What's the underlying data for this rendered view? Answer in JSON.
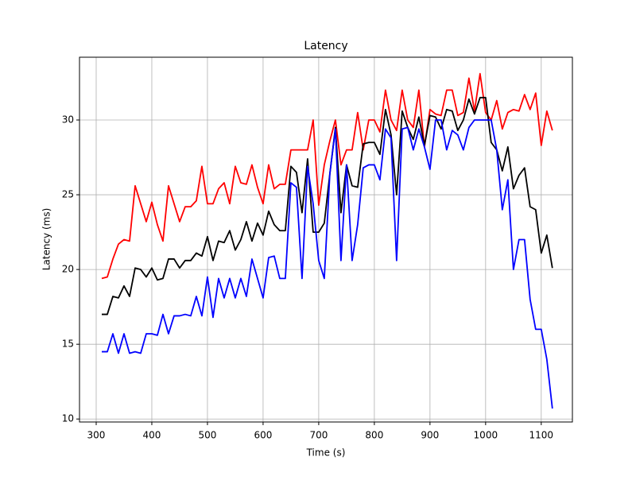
{
  "chart_data": {
    "type": "line",
    "title": "Latency",
    "x_label": "Time (s)",
    "y_label": "Latency (ms)",
    "x": [
      310,
      320,
      330,
      340,
      350,
      360,
      370,
      380,
      390,
      400,
      410,
      420,
      430,
      440,
      450,
      460,
      470,
      480,
      490,
      500,
      510,
      520,
      530,
      540,
      550,
      560,
      570,
      580,
      590,
      600,
      610,
      620,
      630,
      640,
      650,
      660,
      670,
      680,
      690,
      700,
      710,
      720,
      730,
      740,
      750,
      760,
      770,
      780,
      790,
      800,
      810,
      820,
      830,
      840,
      850,
      860,
      870,
      880,
      890,
      900,
      910,
      920,
      930,
      940,
      950,
      960,
      970,
      980,
      990,
      1000,
      1010,
      1020,
      1030,
      1040,
      1050,
      1060,
      1070,
      1080,
      1090,
      1100,
      1110,
      1120
    ],
    "series": [
      {
        "color": "#ff0000",
        "values": [
          19.4,
          19.5,
          20.7,
          21.7,
          22.0,
          21.9,
          25.6,
          24.4,
          23.2,
          24.5,
          23.0,
          21.9,
          25.6,
          24.4,
          23.2,
          24.2,
          24.2,
          24.6,
          26.9,
          24.4,
          24.4,
          25.4,
          25.8,
          24.4,
          26.9,
          25.8,
          25.7,
          27.0,
          25.5,
          24.4,
          27.0,
          25.4,
          25.7,
          25.7,
          28.0,
          28.0,
          28.0,
          28.0,
          30.0,
          24.3,
          27.0,
          28.6,
          30.0,
          27.0,
          28.0,
          28.0,
          30.5,
          28.0,
          30.0,
          30.0,
          29.2,
          32.0,
          30.0,
          29.3,
          32.0,
          30.0,
          29.5,
          32.0,
          28.2,
          30.7,
          30.4,
          30.3,
          32.0,
          32.0,
          30.3,
          30.5,
          32.8,
          30.6,
          33.1,
          30.5,
          30.0,
          31.3,
          29.4,
          30.5,
          30.7,
          30.6,
          31.7,
          30.7,
          31.8,
          28.3,
          30.6,
          29.3
        ]
      },
      {
        "color": "#000000",
        "values": [
          17.0,
          17.0,
          18.2,
          18.1,
          18.9,
          18.2,
          20.1,
          20.0,
          19.5,
          20.1,
          19.3,
          19.4,
          20.7,
          20.7,
          20.1,
          20.6,
          20.6,
          21.1,
          20.9,
          22.2,
          20.6,
          21.9,
          21.8,
          22.6,
          21.3,
          22.0,
          23.2,
          21.9,
          23.1,
          22.3,
          23.9,
          23.0,
          22.6,
          22.6,
          26.9,
          26.5,
          23.8,
          27.4,
          22.5,
          22.5,
          23.1,
          26.4,
          29.5,
          23.8,
          27.0,
          25.6,
          25.5,
          28.4,
          28.5,
          28.5,
          27.7,
          30.7,
          29.0,
          25.0,
          30.6,
          29.5,
          28.7,
          30.2,
          28.3,
          30.3,
          30.2,
          29.4,
          30.7,
          30.6,
          29.3,
          30.0,
          31.4,
          30.4,
          31.5,
          31.5,
          28.5,
          28.0,
          26.6,
          28.2,
          25.4,
          26.3,
          26.8,
          24.2,
          24.0,
          21.1,
          22.3,
          20.1
        ]
      },
      {
        "color": "#0000ff",
        "values": [
          14.5,
          14.5,
          15.7,
          14.4,
          15.7,
          14.4,
          14.5,
          14.4,
          15.7,
          15.7,
          15.6,
          17.0,
          15.7,
          16.9,
          16.9,
          17.0,
          16.9,
          18.2,
          16.9,
          19.5,
          16.8,
          19.4,
          18.1,
          19.4,
          18.1,
          19.4,
          18.2,
          20.7,
          19.4,
          18.1,
          20.8,
          20.9,
          19.4,
          19.4,
          25.8,
          25.5,
          19.4,
          26.9,
          24.4,
          20.6,
          19.4,
          26.4,
          29.4,
          20.6,
          27.0,
          20.6,
          23.0,
          26.8,
          27.0,
          27.0,
          26.0,
          29.4,
          28.8,
          20.6,
          29.4,
          29.5,
          28.0,
          29.4,
          28.2,
          26.7,
          30.0,
          30.0,
          28.0,
          29.3,
          29.0,
          28.0,
          29.5,
          30.0,
          30.0,
          30.0,
          30.0,
          28.0,
          24.0,
          26.0,
          20.0,
          22.0,
          22.0,
          18.0,
          16.0,
          16.0,
          14.0,
          10.7
        ]
      }
    ],
    "xlim": [
      270,
      1156
    ],
    "ylim": [
      9.8,
      34.2
    ],
    "xticks": [
      300,
      400,
      500,
      600,
      700,
      800,
      900,
      1000,
      1100
    ],
    "yticks": [
      10,
      15,
      20,
      25,
      30
    ],
    "grid": true
  }
}
